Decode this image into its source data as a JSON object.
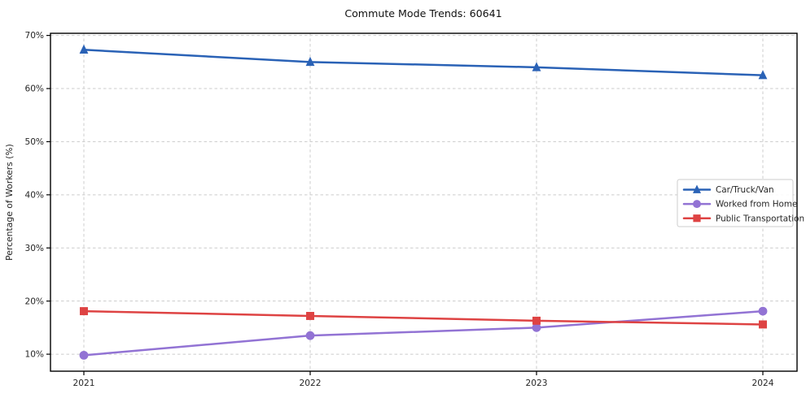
{
  "figure": {
    "title": "Commute Mode Trends: 60641",
    "ylabel": "Percentage of Workers (%)"
  },
  "chart_data": {
    "type": "line",
    "title": "Commute Mode Trends: 60641",
    "xlabel": "",
    "ylabel": "Percentage of Workers (%)",
    "categories": [
      "2021",
      "2022",
      "2023",
      "2024"
    ],
    "series": [
      {
        "name": "Car/Truck/Van",
        "marker": "triangle",
        "color": "#2a62b6",
        "values": [
          67.3,
          65.0,
          64.0,
          62.5
        ]
      },
      {
        "name": "Worked from Home",
        "marker": "circle",
        "color": "#9273d4",
        "values": [
          9.8,
          13.5,
          15.0,
          18.1
        ]
      },
      {
        "name": "Public Transportation",
        "marker": "square",
        "color": "#de4343",
        "values": [
          18.1,
          17.2,
          16.3,
          15.6
        ]
      }
    ],
    "ylim": [
      6.8,
      70.4
    ],
    "ytick_values": [
      10,
      20,
      30,
      40,
      50,
      60,
      70
    ],
    "ytick_labels": [
      "10%",
      "20%",
      "30%",
      "40%",
      "50%",
      "60%",
      "70%"
    ],
    "grid": true,
    "grid_style": "dashed",
    "legend_position": "center-right",
    "legend_entries": [
      "Car/Truck/Van",
      "Worked from Home",
      "Public Transportation"
    ]
  },
  "colors": {
    "background": "#ffffff",
    "grid": "#cccccc",
    "spine": "#000000",
    "tick_text": "#262626",
    "legend_bg": "#ffffff",
    "legend_border": "#cccccc"
  }
}
